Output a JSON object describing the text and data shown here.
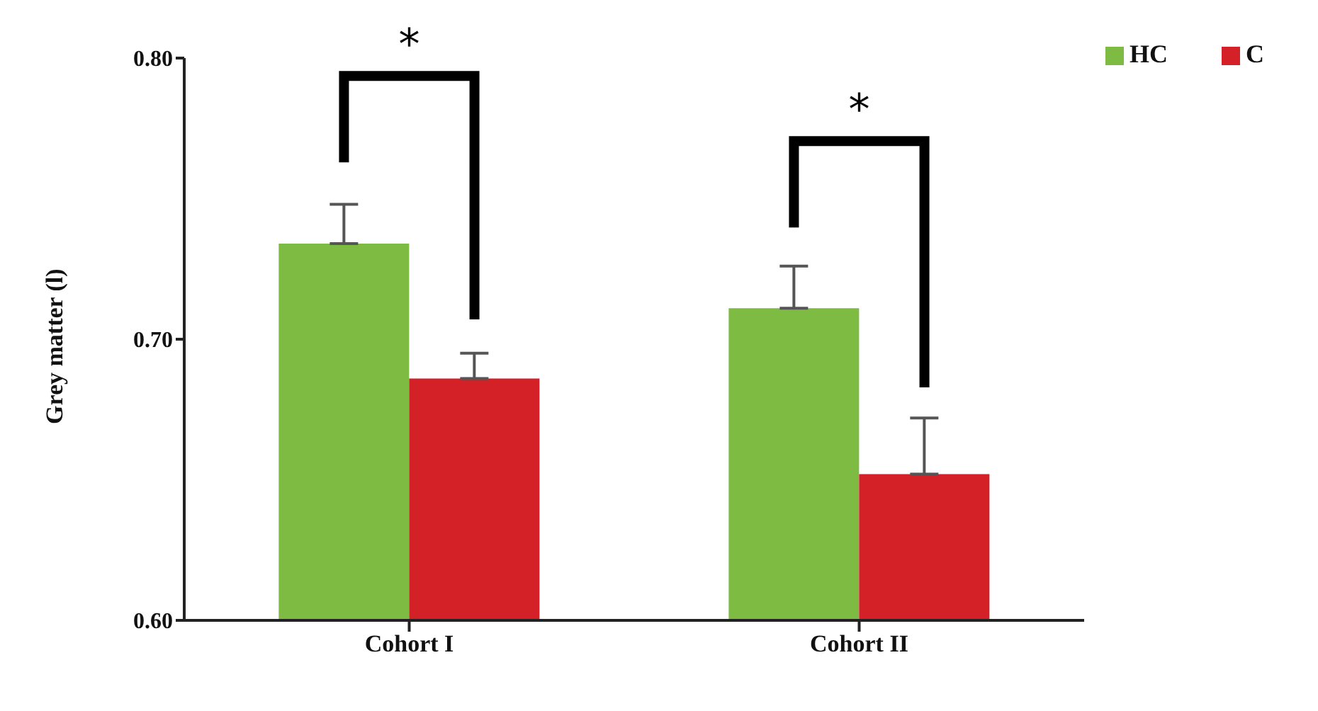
{
  "chart_data": {
    "type": "bar",
    "ylabel": "Grey matter (l)",
    "categories": [
      "Cohort I",
      "Cohort II"
    ],
    "series": [
      {
        "name": "HC",
        "color": "#7dbb42",
        "values": [
          0.734,
          0.711
        ],
        "errors": [
          [
            0.734,
            0.748
          ],
          [
            0.711,
            0.726
          ]
        ]
      },
      {
        "name": "C",
        "color": "#d42027",
        "values": [
          0.686,
          0.652
        ],
        "errors": [
          [
            0.686,
            0.695
          ],
          [
            0.652,
            0.672
          ]
        ]
      }
    ],
    "ylim": [
      0.6,
      0.8
    ],
    "yticks": [
      {
        "value": 0.6,
        "label": "0.60"
      },
      {
        "value": 0.7,
        "label": "0.70"
      },
      {
        "value": 0.8,
        "label": "0.80"
      }
    ],
    "annotations": [
      "*",
      "*"
    ],
    "legend": "top right",
    "grid": false
  }
}
